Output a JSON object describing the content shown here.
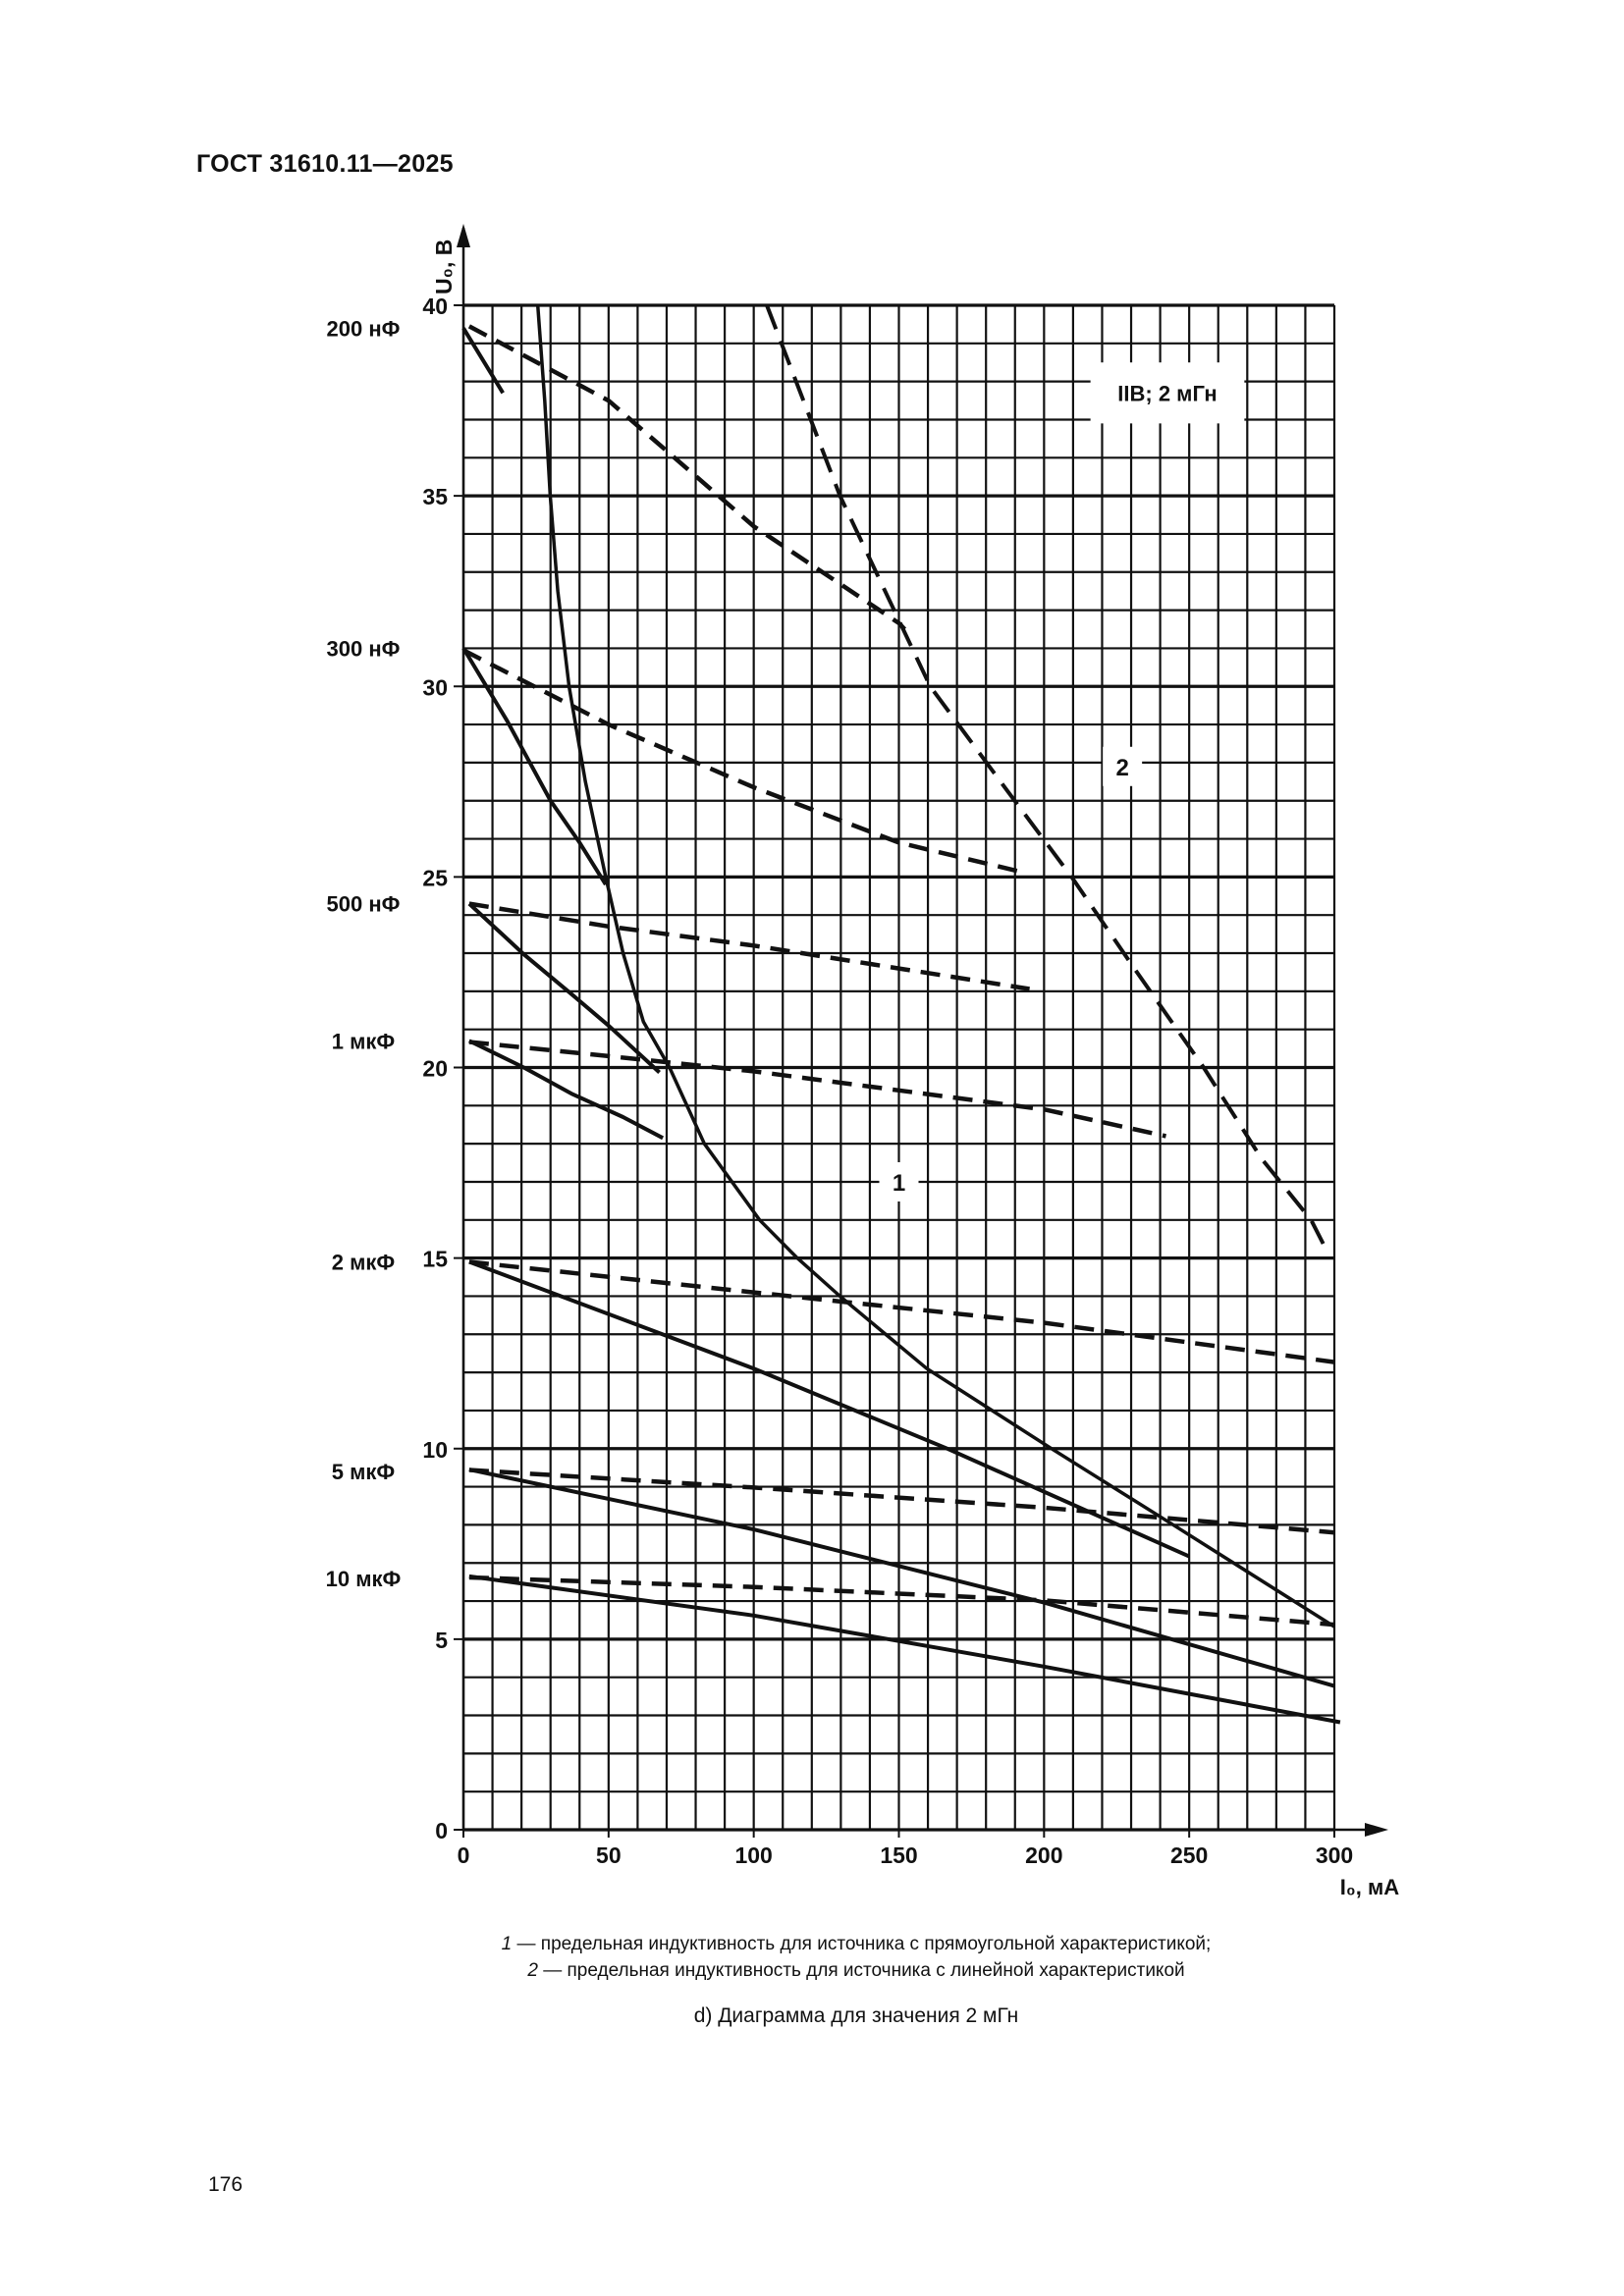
{
  "header": {
    "title": "ГОСТ 31610.11—2025"
  },
  "chart_data": {
    "type": "line",
    "annotation_box": "IIB; 2 мГн",
    "xlabel": "I₀, мА",
    "ylabel": "U₀, В",
    "xlim": [
      0,
      300
    ],
    "ylim": [
      0,
      40
    ],
    "x_ticks": [
      "0",
      "50",
      "100",
      "150",
      "200",
      "250",
      "300"
    ],
    "y_ticks": [
      "0",
      "5",
      "10",
      "15",
      "20",
      "25",
      "30",
      "35",
      "40"
    ],
    "grid": true,
    "grid_step": {
      "x": 10,
      "y": 1
    },
    "curves": [
      {
        "label": "1",
        "style": "solid",
        "label_at": [
          150,
          17
        ],
        "points": [
          [
            25.6,
            40
          ],
          [
            28,
            37.5
          ],
          [
            29.9,
            35
          ],
          [
            32.5,
            32.5
          ],
          [
            36.4,
            30
          ],
          [
            42,
            27.5
          ],
          [
            49,
            25
          ],
          [
            55,
            23
          ],
          [
            62,
            21.2
          ],
          [
            71,
            20
          ],
          [
            83,
            18
          ],
          [
            102,
            16
          ],
          [
            115,
            15
          ],
          [
            129.7,
            14
          ],
          [
            159.6,
            12.1
          ],
          [
            202.6,
            10
          ],
          [
            245.7,
            7.94
          ],
          [
            300,
            5.33
          ]
        ]
      },
      {
        "label": "2",
        "style": "dashed",
        "label_at": [
          227,
          27.9
        ],
        "points": [
          [
            104.5,
            40
          ],
          [
            129.7,
            35
          ],
          [
            160.8,
            30
          ],
          [
            185,
            27.5
          ],
          [
            209.5,
            25
          ],
          [
            232,
            22.5
          ],
          [
            255,
            20
          ],
          [
            275,
            17.6
          ],
          [
            292,
            16
          ],
          [
            298,
            15.1
          ]
        ]
      }
    ],
    "capacitance_lines": [
      {
        "label": "200 нФ",
        "label_u": 39.4,
        "solid": [
          [
            0,
            39.4
          ],
          [
            13.6,
            37.7
          ]
        ],
        "dashed": [
          [
            2,
            39.45
          ],
          [
            50,
            37.5
          ],
          [
            100,
            34.2
          ],
          [
            150,
            31.66
          ],
          [
            152,
            31.5
          ]
        ]
      },
      {
        "label": "300 нФ",
        "label_u": 31,
        "solid": [
          [
            0,
            31
          ],
          [
            15,
            29.1
          ],
          [
            30,
            27
          ],
          [
            40,
            25.9
          ],
          [
            49,
            24.8
          ]
        ],
        "dashed": [
          [
            0,
            30.95
          ],
          [
            50,
            29
          ],
          [
            100,
            27.35
          ],
          [
            150,
            25.9
          ],
          [
            194,
            25.1
          ]
        ]
      },
      {
        "label": "500 нФ",
        "label_u": 24.3,
        "solid": [
          [
            2,
            24.3
          ],
          [
            20.8,
            22.97
          ],
          [
            37.6,
            21.9
          ],
          [
            50,
            21.1
          ],
          [
            67.5,
            19.87
          ]
        ],
        "dashed": [
          [
            2,
            24.3
          ],
          [
            50,
            23.7
          ],
          [
            100,
            23.2
          ],
          [
            150,
            22.6
          ],
          [
            195,
            22.06
          ]
        ]
      },
      {
        "label": "1 мкФ",
        "label_u": 20.7,
        "solid": [
          [
            2,
            20.7
          ],
          [
            20.8,
            20
          ],
          [
            37.6,
            19.3
          ],
          [
            55,
            18.7
          ],
          [
            68.7,
            18.15
          ]
        ],
        "dashed": [
          [
            2,
            20.67
          ],
          [
            50,
            20.3
          ],
          [
            100,
            19.9
          ],
          [
            150,
            19.4
          ],
          [
            200,
            18.9
          ],
          [
            242,
            18.2
          ]
        ]
      },
      {
        "label": "2 мкФ",
        "label_u": 14.9,
        "solid": [
          [
            2,
            14.9
          ],
          [
            100,
            12.1
          ],
          [
            166.7,
            10
          ],
          [
            250,
            7.17
          ]
        ],
        "dashed": [
          [
            2,
            14.9
          ],
          [
            100,
            14.1
          ],
          [
            200,
            13.3
          ],
          [
            300,
            12.27
          ]
        ]
      },
      {
        "label": "5 мкФ",
        "label_u": 9.4,
        "solid": [
          [
            2,
            9.45
          ],
          [
            100,
            7.88
          ],
          [
            200,
            5.96
          ],
          [
            300,
            3.77
          ]
        ],
        "dashed": [
          [
            2,
            9.44
          ],
          [
            100,
            8.98
          ],
          [
            200,
            8.45
          ],
          [
            300,
            7.8
          ]
        ]
      },
      {
        "label": "10 мкФ",
        "label_u": 6.6,
        "solid": [
          [
            2,
            6.65
          ],
          [
            100,
            5.62
          ],
          [
            200,
            4.28
          ],
          [
            302,
            2.82
          ]
        ],
        "dashed": [
          [
            2,
            6.62
          ],
          [
            100,
            6.37
          ],
          [
            200,
            6.02
          ],
          [
            300,
            5.38
          ]
        ]
      }
    ]
  },
  "legend": {
    "item1_key": "1",
    "item1_text": " — предельная индуктивность для источника с прямоугольной характеристикой;",
    "item2_key": "2",
    "item2_text": " — предельная индуктивность для источника с линейной характеристикой"
  },
  "caption": "d) Диаграмма для значения 2 мГн",
  "page_number": "176"
}
